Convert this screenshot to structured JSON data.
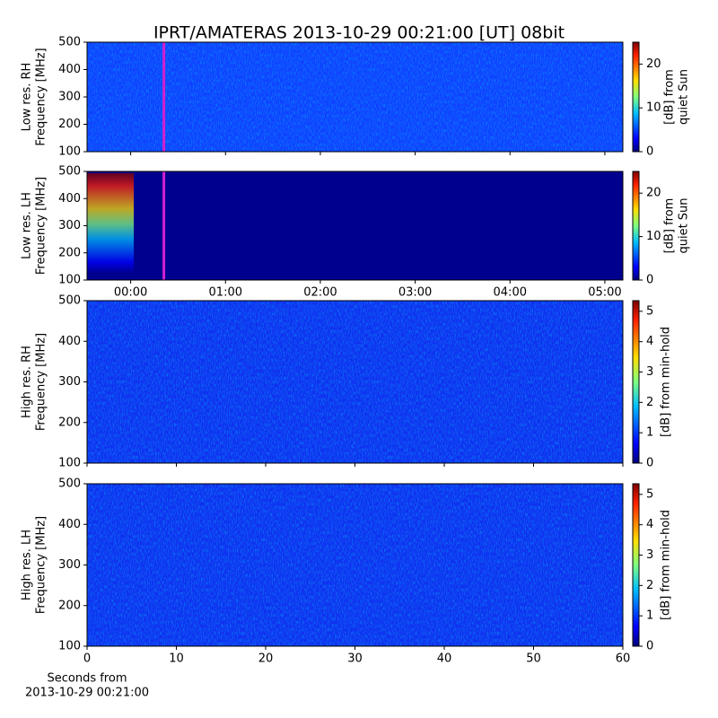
{
  "title": "IPRT/AMATERAS 2013-10-29 00:21:00 [UT]   08bit",
  "chart_data": [
    {
      "type": "heatmap",
      "ylabel": [
        "Low res. RH",
        "Frequency [MHz]"
      ],
      "ylim": [
        100,
        500
      ],
      "yticks": [
        100,
        200,
        300,
        400,
        500
      ],
      "xlim": [
        -0.46,
        5.19
      ],
      "marker_x": 0.35,
      "marker_color": "#d020d0",
      "colorbar_label": [
        "[dB] from",
        "quiet Sun"
      ],
      "clim": [
        0,
        25
      ],
      "cticks": [
        0,
        10,
        20
      ]
    },
    {
      "type": "heatmap",
      "ylabel": [
        "Low res. LH",
        "Frequency [MHz]"
      ],
      "ylim": [
        100,
        500
      ],
      "yticks": [
        100,
        200,
        300,
        400,
        500
      ],
      "xlim": [
        -0.46,
        5.19
      ],
      "marker_x": 0.35,
      "marker_color": "#d020d0",
      "xticks": [
        {
          "value": 0,
          "label": "00:00"
        },
        {
          "value": 1,
          "label": "01:00"
        },
        {
          "value": 2,
          "label": "02:00"
        },
        {
          "value": 3,
          "label": "03:00"
        },
        {
          "value": 4,
          "label": "04:00"
        },
        {
          "value": 5,
          "label": "05:00"
        }
      ],
      "colorbar_label": [
        "[dB] from",
        "quiet Sun"
      ],
      "clim": [
        0,
        25
      ],
      "cticks": [
        0,
        10,
        20
      ]
    },
    {
      "type": "heatmap",
      "ylabel": [
        "High res. RH",
        "Frequency [MHz]"
      ],
      "ylim": [
        100,
        500
      ],
      "yticks": [
        100,
        200,
        300,
        400,
        500
      ],
      "xlim": [
        0,
        60
      ],
      "colorbar_label": [
        "[dB] from min-hold"
      ],
      "clim": [
        0,
        5.35
      ],
      "cticks": [
        0,
        1,
        2,
        3,
        4,
        5
      ]
    },
    {
      "type": "heatmap",
      "ylabel": [
        "High res. LH",
        "Frequency [MHz]"
      ],
      "ylim": [
        100,
        500
      ],
      "yticks": [
        100,
        200,
        300,
        400,
        500
      ],
      "xlim": [
        0,
        60
      ],
      "xticks": [
        0,
        10,
        20,
        30,
        40,
        50,
        60
      ],
      "xlabel": [
        "Seconds from",
        "2013-10-29 00:21:00"
      ],
      "colorbar_label": [
        "[dB] from min-hold"
      ],
      "clim": [
        0,
        5.35
      ],
      "cticks": [
        0,
        1,
        2,
        3,
        4,
        5
      ]
    }
  ]
}
